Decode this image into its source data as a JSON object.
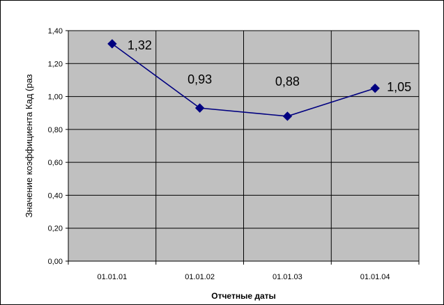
{
  "chart_data": {
    "type": "line",
    "categories": [
      "01.01.01",
      "01.01.02",
      "01.01.03",
      "01.01.04"
    ],
    "series": [
      {
        "values": [
          1.32,
          0.93,
          0.88,
          1.05
        ]
      }
    ],
    "data_labels": [
      "1,32",
      "0,93",
      "0,88",
      "1,05"
    ],
    "xlabel": "Отчетные даты",
    "ylabel": "Значение коэффициента Кад (раз",
    "ylim": [
      0,
      1.4
    ],
    "yticks": [
      0,
      0.2,
      0.4,
      0.6,
      0.8,
      1.0,
      1.2,
      1.4
    ],
    "ytick_labels": [
      "0,00",
      "0,20",
      "0,40",
      "0,60",
      "0,80",
      "1,00",
      "1,20",
      "1,40"
    ],
    "grid": true,
    "legend": "none",
    "colors": {
      "plot_bg": "#c0c0c0",
      "line": "#000080",
      "marker": "#000080",
      "grid": "#000000"
    }
  }
}
